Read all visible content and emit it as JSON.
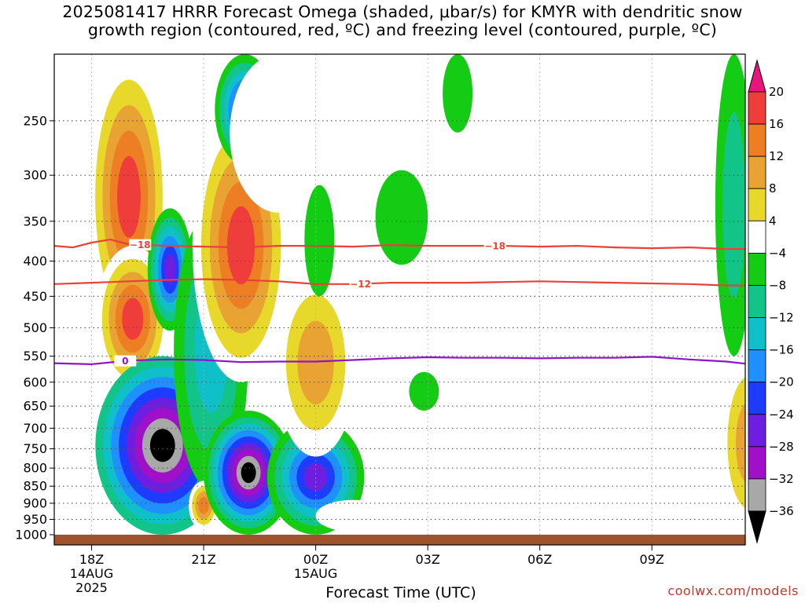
{
  "title": {
    "line1": "2025081417 HRRR Forecast Omega (shaded, μbar/s) for KMYR with dendritic snow",
    "line2": "growth region (contoured, red, ºC) and freezing level (contoured, purple, ºC)"
  },
  "xlabel": "Forecast Time (UTC)",
  "credit": "coolwx.com/models",
  "colors": {
    "dgz_contour": "#e8413a",
    "freezing_contour": "#8e14c8",
    "ground": "#a0522d",
    "grid": "#555555"
  },
  "chart_data": {
    "type": "heatmap",
    "y_axis": {
      "scale": "pressure",
      "inverted": true,
      "range_hPa": [
        1000,
        200
      ],
      "ticks": [
        250,
        300,
        350,
        400,
        450,
        500,
        550,
        600,
        650,
        700,
        750,
        800,
        850,
        900,
        950,
        1000
      ]
    },
    "x_axis": {
      "range_hours": [
        17,
        23.2
      ],
      "ticks": [
        {
          "hour": 18,
          "label": "18Z",
          "sub1": "14AUG",
          "sub2": "2025"
        },
        {
          "hour": 21,
          "label": "21Z",
          "sub1": "",
          "sub2": ""
        },
        {
          "hour": 24,
          "label": "00Z",
          "sub1": "15AUG",
          "sub2": ""
        },
        {
          "hour": 27,
          "label": "03Z",
          "sub1": "",
          "sub2": ""
        },
        {
          "hour": 30,
          "label": "06Z",
          "sub1": "",
          "sub2": ""
        },
        {
          "hour": 33,
          "label": "09Z",
          "sub1": "",
          "sub2": ""
        }
      ]
    },
    "colorbar": {
      "labels": [
        "20",
        "16",
        "12",
        "8",
        "4",
        "−4",
        "−8",
        "−12",
        "−16",
        "−20",
        "−24",
        "−28",
        "−32",
        "−36"
      ],
      "bins": [
        {
          "lo": 20,
          "hi": null,
          "color": "#e8167a"
        },
        {
          "lo": 16,
          "hi": 20,
          "color": "#ee3d3a"
        },
        {
          "lo": 12,
          "hi": 16,
          "color": "#ee7e23"
        },
        {
          "lo": 8,
          "hi": 12,
          "color": "#e8a332"
        },
        {
          "lo": 4,
          "hi": 8,
          "color": "#e8d82b"
        },
        {
          "lo": -4,
          "hi": 4,
          "color": "#ffffff"
        },
        {
          "lo": -8,
          "hi": -4,
          "color": "#13cc13"
        },
        {
          "lo": -12,
          "hi": -8,
          "color": "#13c488"
        },
        {
          "lo": -16,
          "hi": -12,
          "color": "#10c0c8"
        },
        {
          "lo": -20,
          "hi": -16,
          "color": "#1e90ff"
        },
        {
          "lo": -24,
          "hi": -20,
          "color": "#1e3cff"
        },
        {
          "lo": -28,
          "hi": -24,
          "color": "#6e1ee0"
        },
        {
          "lo": -32,
          "hi": -28,
          "color": "#a010c8"
        },
        {
          "lo": -36,
          "hi": -32,
          "color": "#a8a8a8"
        },
        {
          "lo": null,
          "hi": -36,
          "color": "#000000"
        }
      ]
    },
    "contours": [
      {
        "name": "-18",
        "label": "−18",
        "color": "#e8413a",
        "points": [
          [
            17,
            380
          ],
          [
            17.5,
            382
          ],
          [
            18,
            376
          ],
          [
            18.5,
            372
          ],
          [
            19,
            378
          ],
          [
            20,
            380
          ],
          [
            21,
            381
          ],
          [
            22,
            382
          ],
          [
            23,
            380
          ],
          [
            24,
            380
          ],
          [
            25,
            381
          ],
          [
            26,
            379
          ],
          [
            27,
            380
          ],
          [
            28,
            380
          ],
          [
            29,
            380
          ],
          [
            30,
            381
          ],
          [
            31,
            380
          ],
          [
            32,
            382
          ],
          [
            33,
            383
          ],
          [
            34,
            382
          ],
          [
            35,
            384
          ],
          [
            35.5,
            384
          ]
        ]
      },
      {
        "name": "-12",
        "label": "−12",
        "color": "#e8413a",
        "points": [
          [
            17,
            432
          ],
          [
            18,
            430
          ],
          [
            19,
            428
          ],
          [
            20,
            426
          ],
          [
            21,
            425
          ],
          [
            22,
            426
          ],
          [
            23,
            428
          ],
          [
            24,
            432
          ],
          [
            25,
            432
          ],
          [
            26,
            430
          ],
          [
            27,
            430
          ],
          [
            28,
            430
          ],
          [
            29,
            429
          ],
          [
            30,
            428
          ],
          [
            31,
            429
          ],
          [
            32,
            430
          ],
          [
            33,
            431
          ],
          [
            34,
            432
          ],
          [
            35,
            434
          ],
          [
            35.5,
            434
          ]
        ]
      },
      {
        "name": "0",
        "label": "0",
        "color": "#8e14c8",
        "points": [
          [
            17,
            563
          ],
          [
            18,
            565
          ],
          [
            19,
            558
          ],
          [
            20,
            556
          ],
          [
            21,
            557
          ],
          [
            22,
            561
          ],
          [
            23,
            560
          ],
          [
            24,
            560
          ],
          [
            25,
            557
          ],
          [
            26,
            554
          ],
          [
            27,
            552
          ],
          [
            28,
            553
          ],
          [
            29,
            553
          ],
          [
            30,
            554
          ],
          [
            31,
            553
          ],
          [
            32,
            553
          ],
          [
            33,
            551
          ],
          [
            34,
            556
          ],
          [
            35,
            560
          ],
          [
            35.5,
            564
          ]
        ]
      }
    ],
    "label_positions": [
      {
        "contour": "-18",
        "hour": 19.3
      },
      {
        "contour": "-18",
        "hour": 28.8
      },
      {
        "contour": "-12",
        "hour": 25.2
      },
      {
        "contour": "0",
        "hour": 18.9
      }
    ],
    "omega_features": [
      {
        "hour": 19.0,
        "p": 310,
        "rx": 1.1,
        "rp": 210,
        "values": [
          4,
          8,
          12,
          16,
          20
        ]
      },
      {
        "hour": 19.1,
        "p": 500,
        "rx": 1.0,
        "rp": 120,
        "values": [
          4,
          8,
          12,
          16,
          20
        ]
      },
      {
        "hour": 19.9,
        "p": 790,
        "rx": 1.8,
        "rp": 240,
        "values": [
          -8,
          -12,
          -16,
          -20,
          -24,
          -28,
          -32,
          -36
        ]
      },
      {
        "hour": 20.1,
        "p": 420,
        "rx": 0.6,
        "rp": 85,
        "values": [
          -4,
          -8,
          -12,
          -16,
          -20,
          -24
        ]
      },
      {
        "hour": 21.2,
        "p": 600,
        "rx": 1.0,
        "rp": 260,
        "values": [
          -4,
          -8,
          -12
        ]
      },
      {
        "hour": 21.0,
        "p": 910,
        "rx": 0.4,
        "rp": 75,
        "values": [
          4,
          8,
          12,
          16
        ]
      },
      {
        "hour": 22.0,
        "p": 420,
        "rx": 1.3,
        "rp": 180,
        "values": [
          4,
          8,
          12,
          16,
          20
        ]
      },
      {
        "hour": 22.1,
        "p": 210,
        "rx": 0.8,
        "rp": 80,
        "values": [
          -4,
          -8,
          -12,
          -16,
          -20,
          -24
        ]
      },
      {
        "hour": 22.2,
        "p": 830,
        "rx": 1.2,
        "rp": 170,
        "values": [
          -4,
          -8,
          -12,
          -16,
          -20,
          -24,
          -28,
          -32,
          -36
        ]
      },
      {
        "hour": 24.0,
        "p": 840,
        "rx": 1.3,
        "rp": 160,
        "values": [
          -4,
          -8,
          -12,
          -16,
          -20,
          -24
        ]
      },
      {
        "hour": 24.0,
        "p": 590,
        "rx": 1.1,
        "rp": 180,
        "values": [
          4,
          8,
          12
        ]
      },
      {
        "hour": 23.0,
        "p": 220,
        "rx": 1.3,
        "rp": 120,
        "values": [
          4
        ]
      },
      {
        "hour": 26.3,
        "p": 220,
        "rx": 1.1,
        "rp": 60,
        "values": [
          4
        ]
      },
      {
        "hour": 27.0,
        "p": 300,
        "rx": 1.3,
        "rp": 150,
        "values": [
          4
        ]
      },
      {
        "hour": 26.3,
        "p": 350,
        "rx": 0.7,
        "rp": 55,
        "values": [
          -4
        ]
      },
      {
        "hour": 24.1,
        "p": 380,
        "rx": 0.4,
        "rp": 70,
        "values": [
          -4
        ]
      },
      {
        "hour": 26.9,
        "p": 620,
        "rx": 0.4,
        "rp": 40,
        "values": [
          -4
        ]
      },
      {
        "hour": 27.8,
        "p": 225,
        "rx": 0.4,
        "rp": 35,
        "values": [
          -4
        ]
      },
      {
        "hour": 26.0,
        "p": 740,
        "rx": 0.5,
        "rp": 150,
        "values": [
          4
        ]
      },
      {
        "hour": 25.0,
        "p": 940,
        "rx": 1.0,
        "rp": 50,
        "values": [
          4
        ]
      },
      {
        "hour": 30.7,
        "p": 910,
        "rx": 1.2,
        "rp": 65,
        "values": [
          4
        ]
      },
      {
        "hour": 33.0,
        "p": 900,
        "rx": 0.9,
        "rp": 80,
        "values": [
          4
        ]
      },
      {
        "hour": 32.0,
        "p": 680,
        "rx": 0.3,
        "rp": 50,
        "values": [
          4
        ]
      },
      {
        "hour": 33.1,
        "p": 680,
        "rx": 0.5,
        "rp": 100,
        "values": [
          4
        ]
      },
      {
        "hour": 35.6,
        "p": 770,
        "rx": 0.8,
        "rp": 230,
        "values": [
          4,
          8,
          12
        ]
      },
      {
        "hour": 35.2,
        "p": 330,
        "rx": 0.5,
        "rp": 220,
        "values": [
          -4,
          -8
        ]
      }
    ]
  }
}
